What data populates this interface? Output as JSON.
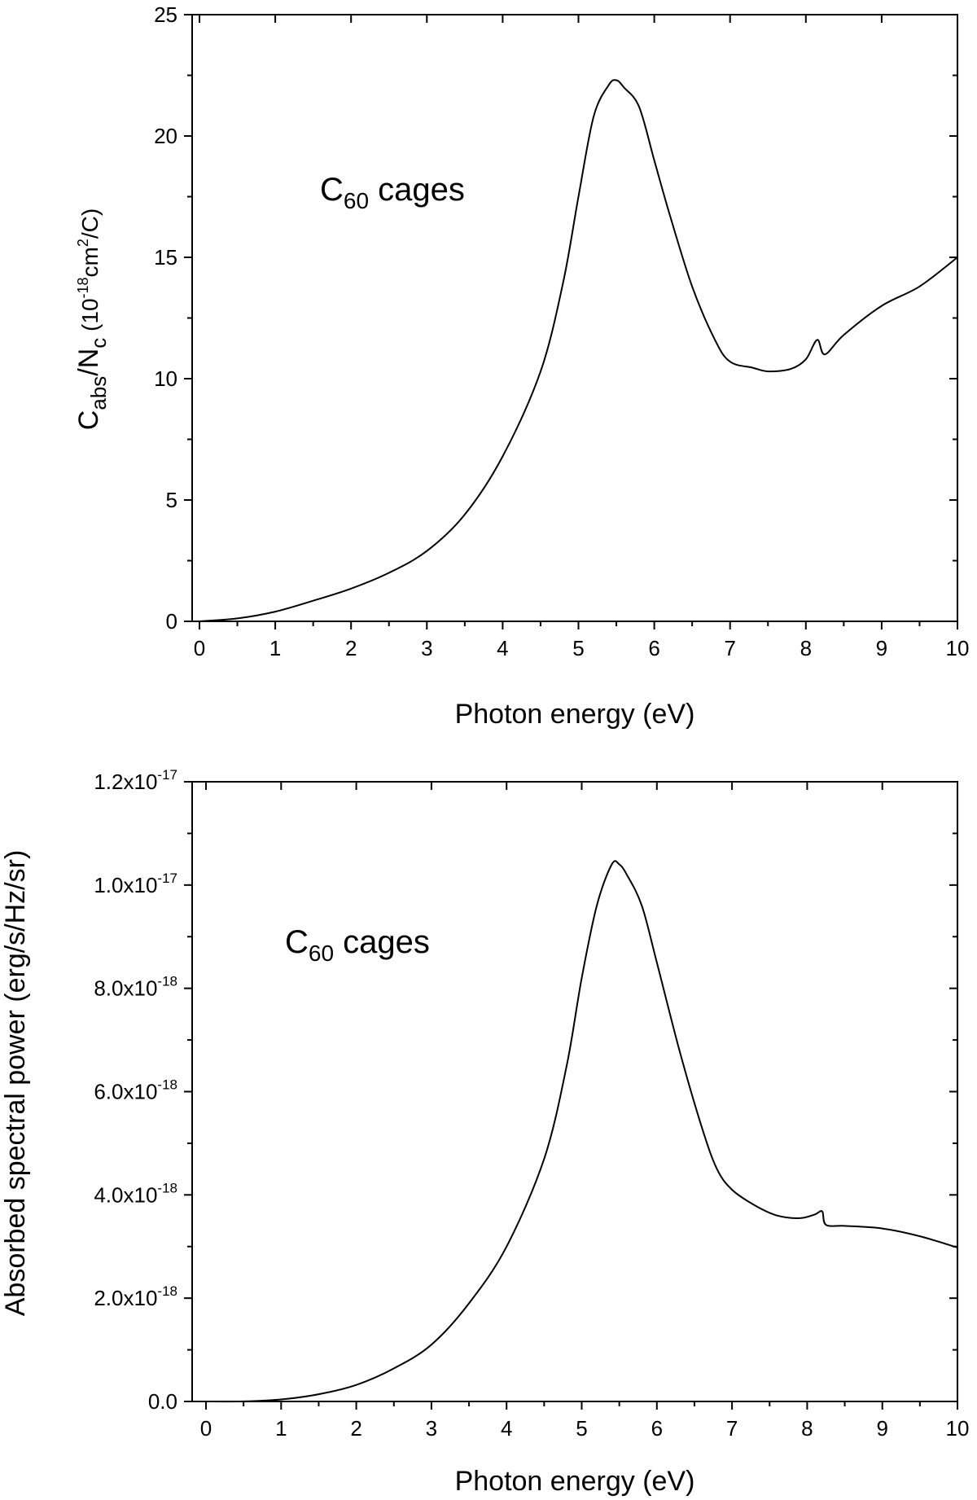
{
  "chart_data": [
    {
      "type": "line",
      "xlabel": "Photon energy (eV)",
      "ylabel": {
        "main": "C",
        "sub1": "abs",
        "mid": "/N",
        "sub2": "c",
        "unit_pre": " (10",
        "unit_exp": "-18",
        "unit_mid": "cm",
        "unit_exp2": "2",
        "unit_post": "/C)"
      },
      "annotation": {
        "main": "C",
        "sub": "60",
        "post": " cages"
      },
      "xlim": [
        0,
        10
      ],
      "ylim": [
        0,
        25
      ],
      "x_ticks": [
        "0",
        "1",
        "2",
        "3",
        "4",
        "5",
        "6",
        "7",
        "8",
        "9",
        "10"
      ],
      "y_ticks": [
        "0",
        "5",
        "10",
        "15",
        "20",
        "25"
      ],
      "grid": false,
      "series": [
        {
          "x": [
            0,
            0.5,
            1.0,
            1.5,
            2.0,
            2.5,
            3.0,
            3.5,
            4.0,
            4.5,
            4.8,
            5.0,
            5.2,
            5.4,
            5.5,
            5.6,
            5.8,
            6.0,
            6.2,
            6.5,
            6.8,
            7.0,
            7.3,
            7.5,
            7.8,
            8.0,
            8.15,
            8.25,
            8.5,
            9.0,
            9.5,
            10.0
          ],
          "y": [
            0,
            0.12,
            0.4,
            0.85,
            1.35,
            2.0,
            2.9,
            4.4,
            6.8,
            10.3,
            14.0,
            17.5,
            20.8,
            22.1,
            22.3,
            22.0,
            21.2,
            19.0,
            16.8,
            13.8,
            11.6,
            10.7,
            10.45,
            10.3,
            10.4,
            10.8,
            11.6,
            11.0,
            11.8,
            13.0,
            13.8,
            15.0
          ]
        }
      ]
    },
    {
      "type": "line",
      "xlabel": "Photon energy (eV)",
      "ylabel": "Absorbed spectral power (erg/s/Hz/sr)",
      "annotation": {
        "main": "C",
        "sub": "60",
        "post": " cages"
      },
      "xlim": [
        0,
        10
      ],
      "ylim": [
        0,
        1.2e-17
      ],
      "x_ticks": [
        "0",
        "1",
        "2",
        "3",
        "4",
        "5",
        "6",
        "7",
        "8",
        "9",
        "10"
      ],
      "y_ticks": [
        {
          "value": 0,
          "base": "0.0",
          "exp": ""
        },
        {
          "value": 2e-18,
          "base": "2.0x10",
          "exp": "-18"
        },
        {
          "value": 4e-18,
          "base": "4.0x10",
          "exp": "-18"
        },
        {
          "value": 6e-18,
          "base": "6.0x10",
          "exp": "-18"
        },
        {
          "value": 8e-18,
          "base": "8.0x10",
          "exp": "-18"
        },
        {
          "value": 1e-17,
          "base": "1.0x10",
          "exp": "-17"
        },
        {
          "value": 1.2e-17,
          "base": "1.2x10",
          "exp": "-17"
        }
      ],
      "grid": false,
      "series": [
        {
          "x": [
            0,
            0.5,
            1.0,
            1.5,
            2.0,
            2.5,
            3.0,
            3.5,
            4.0,
            4.5,
            4.8,
            5.0,
            5.2,
            5.4,
            5.5,
            5.6,
            5.8,
            6.0,
            6.3,
            6.6,
            6.8,
            7.0,
            7.3,
            7.6,
            7.9,
            8.1,
            8.2,
            8.25,
            8.5,
            9.0,
            9.5,
            10.0
          ],
          "y": [
            0,
            2e-21,
            4e-20,
            1.4e-19,
            3.2e-19,
            6.4e-19,
            1.1e-18,
            1.9e-18,
            3e-18,
            4.7e-18,
            6.5e-18,
            8.2e-18,
            9.6e-18,
            1.04e-17,
            1.04e-17,
            1.02e-17,
            9.6e-18,
            8.5e-18,
            6.8e-18,
            5.3e-18,
            4.5e-18,
            4.1e-18,
            3.8e-18,
            3.6e-18,
            3.55e-18,
            3.62e-18,
            3.68e-18,
            3.42e-18,
            3.4e-18,
            3.35e-18,
            3.2e-18,
            2.98e-18
          ]
        }
      ]
    }
  ]
}
